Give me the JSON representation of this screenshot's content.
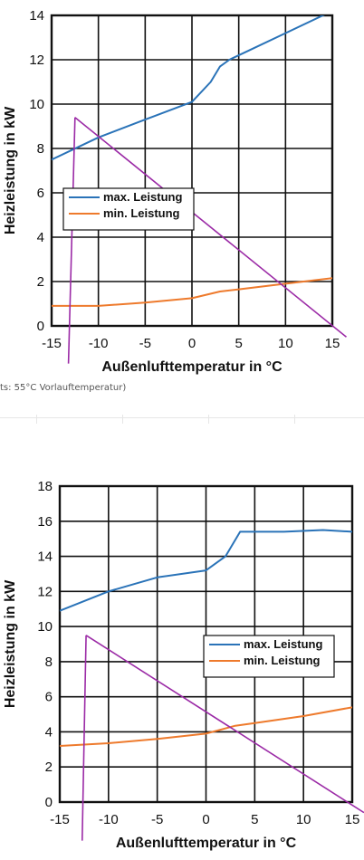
{
  "caption": "ts: 55°C Vorlauftemperatur)",
  "colors": {
    "max": "#2a73b8",
    "min": "#ee7a2c",
    "annotation": "#9b2aa6",
    "grid": "#111111"
  },
  "chart_data": [
    {
      "type": "line",
      "xlabel": "Außenlufttemperatur in °C",
      "ylabel": "Heizleistung in kW",
      "xlim": [
        -15,
        15
      ],
      "ylim": [
        0,
        14
      ],
      "xticks": [
        "-15",
        "-10",
        "-5",
        "0",
        "5",
        "10",
        "15"
      ],
      "yticks": [
        "0",
        "2",
        "4",
        "6",
        "8",
        "10",
        "12",
        "14"
      ],
      "grid": true,
      "legend_position": "left-middle",
      "series": [
        {
          "name": "max. Leistung",
          "color": "#2a73b8",
          "x": [
            -15,
            -10,
            -5,
            0,
            2,
            3,
            4,
            6,
            10,
            15
          ],
          "y": [
            7.5,
            8.5,
            9.3,
            10.1,
            11.0,
            11.7,
            12.0,
            12.4,
            13.2,
            14.2
          ]
        },
        {
          "name": "min. Leistung",
          "color": "#ee7a2c",
          "x": [
            -15,
            -10,
            -5,
            0,
            3,
            5,
            10,
            15
          ],
          "y": [
            0.9,
            0.9,
            1.05,
            1.25,
            1.55,
            1.65,
            1.9,
            2.15
          ]
        }
      ],
      "annotation": {
        "color": "#9b2aa6",
        "vertical": {
          "x1": -12.5,
          "y1": 9.4,
          "x2": -13.2,
          "y2": -1.7
        },
        "diagonal": {
          "x1": -12.5,
          "y1": 9.4,
          "x2": 16.5,
          "y2": -0.5
        }
      }
    },
    {
      "type": "line",
      "xlabel": "Außenlufttemperatur in °C",
      "ylabel": "Heizleistung in kW",
      "xlim": [
        -15,
        15
      ],
      "ylim": [
        0,
        18
      ],
      "xticks": [
        "-15",
        "-10",
        "-5",
        "0",
        "5",
        "10",
        "15"
      ],
      "yticks": [
        "0",
        "2",
        "4",
        "6",
        "8",
        "10",
        "12",
        "14",
        "16",
        "18"
      ],
      "grid": true,
      "legend_position": "right-middle",
      "series": [
        {
          "name": "max. Leistung",
          "color": "#2a73b8",
          "x": [
            -15,
            -10,
            -5,
            0,
            2,
            3.5,
            5,
            8,
            12,
            15
          ],
          "y": [
            10.9,
            12.0,
            12.8,
            13.2,
            14.0,
            15.4,
            15.4,
            15.4,
            15.5,
            15.4
          ]
        },
        {
          "name": "min. Leistung",
          "color": "#ee7a2c",
          "x": [
            -15,
            -10,
            -5,
            0,
            3,
            5,
            10,
            15
          ],
          "y": [
            3.2,
            3.35,
            3.6,
            3.9,
            4.35,
            4.5,
            4.9,
            5.4
          ]
        }
      ],
      "annotation": {
        "color": "#9b2aa6",
        "vertical": {
          "x1": -12.3,
          "y1": 9.5,
          "x2": -12.7,
          "y2": -2.2
        },
        "diagonal": {
          "x1": -12.3,
          "y1": 9.5,
          "x2": 16.2,
          "y2": -0.6
        }
      }
    }
  ]
}
